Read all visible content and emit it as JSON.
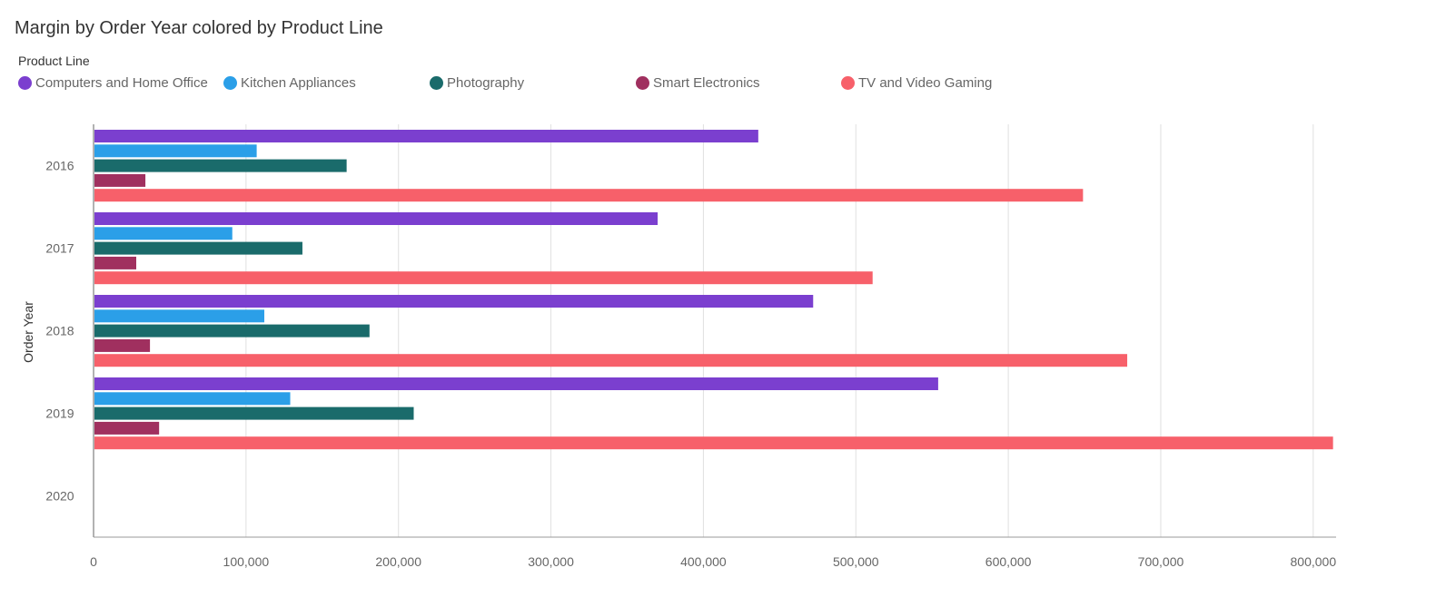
{
  "chart_data": {
    "type": "bar",
    "orientation": "horizontal",
    "title": "Margin by Order Year colored by Product Line",
    "legend_title": "Product Line",
    "legend_position": "top-left",
    "ylabel": "Order Year",
    "xlabel": "",
    "categories": [
      "2016",
      "2017",
      "2018",
      "2019",
      "2020"
    ],
    "xlim": [
      0,
      815000
    ],
    "xticks": [
      0,
      100000,
      200000,
      300000,
      400000,
      500000,
      600000,
      700000,
      800000
    ],
    "xtick_labels": [
      "0",
      "100,000",
      "200,000",
      "300,000",
      "400,000",
      "500,000",
      "600,000",
      "700,000",
      "800,000"
    ],
    "grid": "vertical",
    "series": [
      {
        "name": "Computers and Home Office",
        "color": "#7b3fcf",
        "values": [
          436000,
          370000,
          472000,
          554000,
          null
        ]
      },
      {
        "name": "Kitchen Appliances",
        "color": "#2b9fe8",
        "values": [
          107000,
          91000,
          112000,
          129000,
          null
        ]
      },
      {
        "name": "Photography",
        "color": "#1a6b6b",
        "values": [
          166000,
          137000,
          181000,
          210000,
          null
        ]
      },
      {
        "name": "Smart Electronics",
        "color": "#a0305f",
        "values": [
          34000,
          28000,
          37000,
          43000,
          null
        ]
      },
      {
        "name": "TV and Video Gaming",
        "color": "#f7606a",
        "values": [
          649000,
          511000,
          678000,
          813000,
          null
        ]
      }
    ]
  }
}
